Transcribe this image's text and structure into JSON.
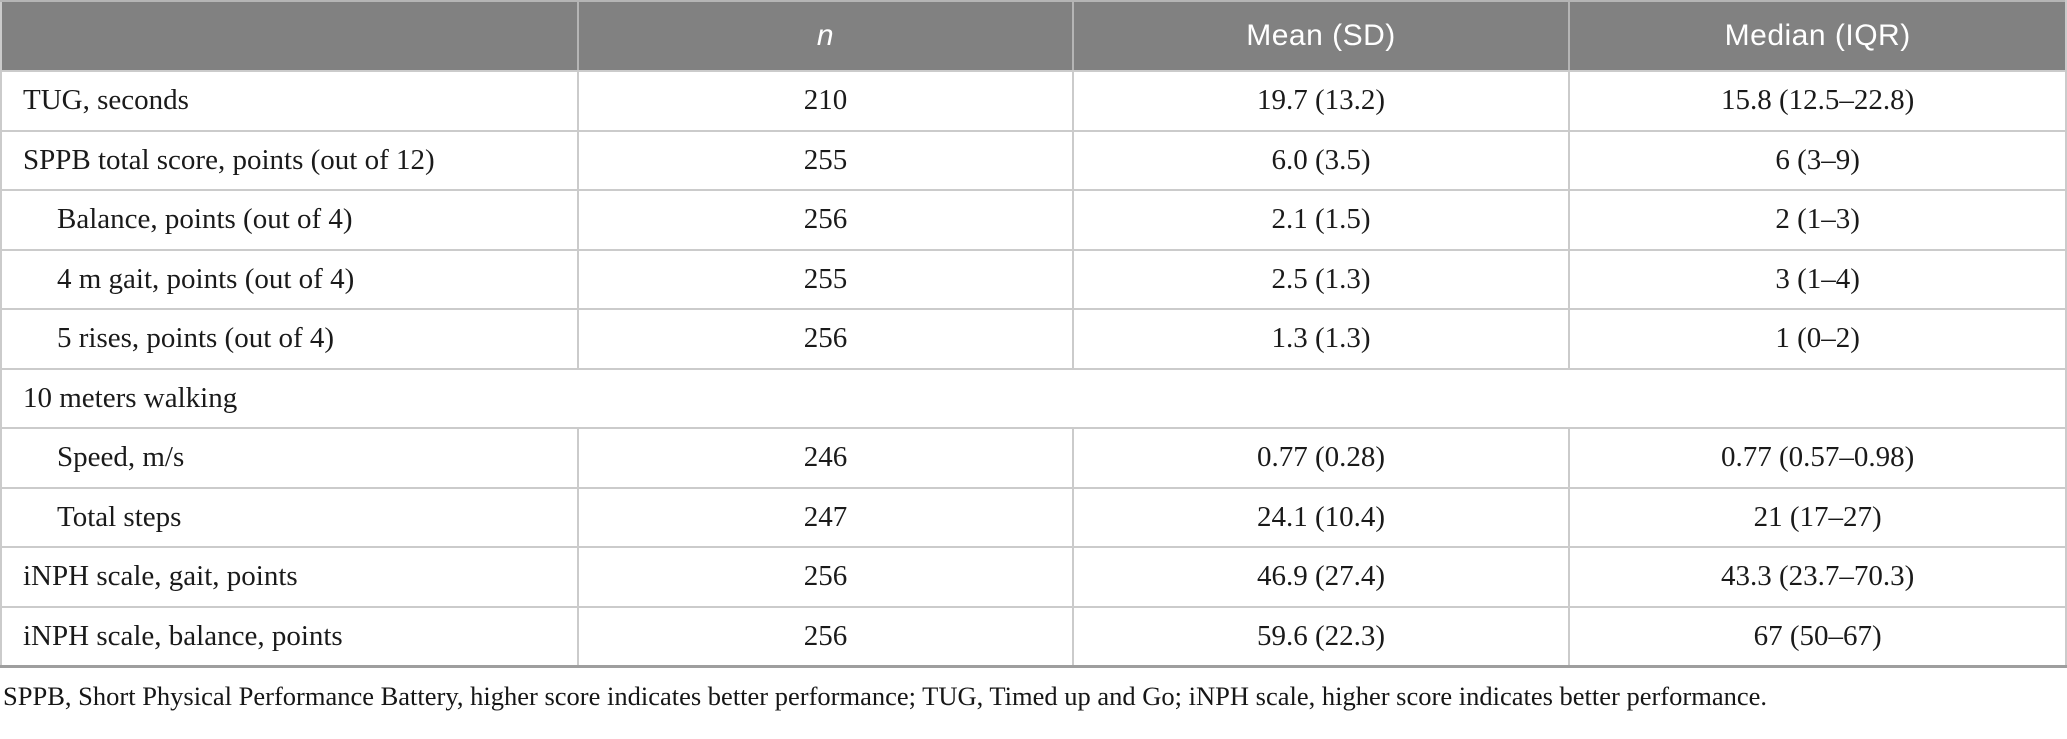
{
  "colors": {
    "header_bg": "#818181",
    "header_text": "#ffffff",
    "row_border": "#cbcbcb",
    "header_divider": "#b5b5b5",
    "table_bottom_border": "#9e9e9e",
    "body_text": "#1a1a1a"
  },
  "table": {
    "columns": [
      "",
      "n",
      "Mean (SD)",
      "Median (IQR)"
    ],
    "rows": [
      {
        "label": "TUG, seconds",
        "indent": false,
        "section": false,
        "n": "210",
        "mean_sd": "19.7 (13.2)",
        "median_iqr": "15.8 (12.5–22.8)"
      },
      {
        "label": "SPPB total score, points (out of 12)",
        "indent": false,
        "section": false,
        "n": "255",
        "mean_sd": "6.0 (3.5)",
        "median_iqr": "6 (3–9)"
      },
      {
        "label": "Balance, points (out of 4)",
        "indent": true,
        "section": false,
        "n": "256",
        "mean_sd": "2.1 (1.5)",
        "median_iqr": "2 (1–3)"
      },
      {
        "label": "4 m gait, points (out of 4)",
        "indent": true,
        "section": false,
        "n": "255",
        "mean_sd": "2.5 (1.3)",
        "median_iqr": "3 (1–4)"
      },
      {
        "label": "5 rises, points (out of 4)",
        "indent": true,
        "section": false,
        "n": "256",
        "mean_sd": "1.3 (1.3)",
        "median_iqr": "1 (0–2)"
      },
      {
        "label": "10 meters walking",
        "indent": false,
        "section": true,
        "n": "",
        "mean_sd": "",
        "median_iqr": ""
      },
      {
        "label": "Speed, m/s",
        "indent": true,
        "section": false,
        "n": "246",
        "mean_sd": "0.77 (0.28)",
        "median_iqr": "0.77 (0.57–0.98)"
      },
      {
        "label": "Total steps",
        "indent": true,
        "section": false,
        "n": "247",
        "mean_sd": "24.1 (10.4)",
        "median_iqr": "21 (17–27)"
      },
      {
        "label": "iNPH scale, gait, points",
        "indent": false,
        "section": false,
        "n": "256",
        "mean_sd": "46.9 (27.4)",
        "median_iqr": "43.3 (23.7–70.3)"
      },
      {
        "label": "iNPH scale, balance, points",
        "indent": false,
        "section": false,
        "n": "256",
        "mean_sd": "59.6 (22.3)",
        "median_iqr": "67 (50–67)"
      }
    ],
    "footnote": "SPPB, Short Physical Performance Battery, higher score indicates better performance; TUG, Timed up and Go; iNPH scale, higher score indicates better performance."
  }
}
